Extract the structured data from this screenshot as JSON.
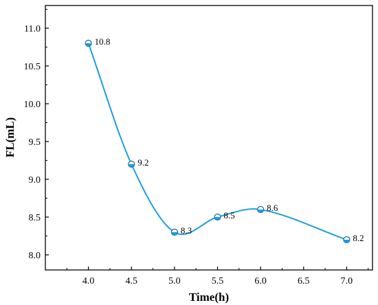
{
  "chart_data": {
    "type": "line",
    "xlabel": "Time(h)",
    "ylabel": "FL(mL)",
    "xlim": [
      3.5,
      7.3
    ],
    "ylim": [
      7.8,
      11.3
    ],
    "x_ticks": [
      4.0,
      4.5,
      5.0,
      5.5,
      6.0,
      6.5,
      7.0
    ],
    "y_ticks": [
      8.0,
      8.5,
      9.0,
      9.5,
      10.0,
      10.5,
      11.0
    ],
    "grid": false,
    "legend": "none",
    "series": [
      {
        "x": [
          4.0,
          4.5,
          5.0,
          5.5,
          6.0,
          7.0
        ],
        "y": [
          10.8,
          9.2,
          8.3,
          8.5,
          8.6,
          8.2
        ],
        "labels": [
          "10.8",
          "9.2",
          "8.3",
          "8.5",
          "8.6",
          "8.2"
        ],
        "smooth": true
      }
    ],
    "colors": {
      "line": "#1e9be0",
      "marker": "#1e9be0",
      "axis": "#000000"
    }
  }
}
